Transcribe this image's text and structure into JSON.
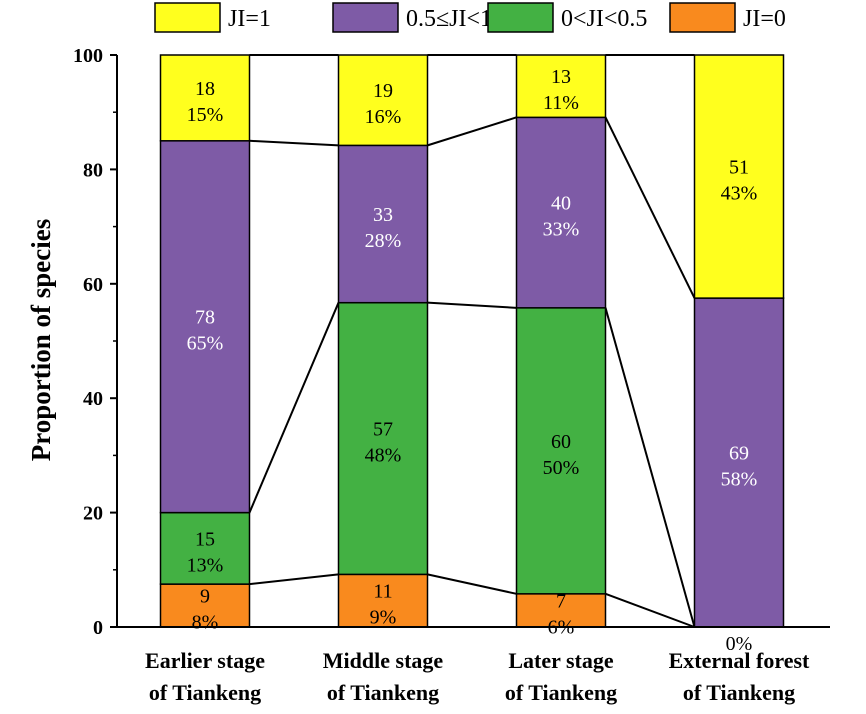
{
  "chart_data": {
    "type": "bar",
    "stacked": true,
    "categories": [
      [
        "Earlier stage",
        "of Tiankeng"
      ],
      [
        "Middle stage",
        "of Tiankeng"
      ],
      [
        "Later stage",
        "of Tiankeng"
      ],
      [
        "External forest",
        "of Tiankeng"
      ]
    ],
    "series": [
      {
        "name": "JI=0",
        "color": "#F98A1E",
        "text_color": "#000000",
        "values": [
          7.5,
          9.2,
          5.8,
          0
        ],
        "counts": [
          "9",
          "11",
          "7",
          "0"
        ],
        "percents": [
          "8%",
          "9%",
          "6%",
          "0%"
        ]
      },
      {
        "name": "0<JI<0.5",
        "color": "#43B143",
        "text_color": "#000000",
        "values": [
          12.5,
          47.5,
          50.0,
          0
        ],
        "counts": [
          "15",
          "57",
          "60",
          ""
        ],
        "percents": [
          "13%",
          "48%",
          "50%",
          ""
        ]
      },
      {
        "name": "0.5≤JI<1",
        "color": "#7E5BA6",
        "text_color": "#ffffff",
        "values": [
          65.0,
          27.5,
          33.3,
          57.5
        ],
        "counts": [
          "78",
          "33",
          "40",
          "69"
        ],
        "percents": [
          "65%",
          "28%",
          "33%",
          "58%"
        ]
      },
      {
        "name": "JI=1",
        "color": "#FFFF1E",
        "text_color": "#000000",
        "values": [
          15.0,
          15.8,
          10.9,
          42.5
        ],
        "counts": [
          "18",
          "19",
          "13",
          "51"
        ],
        "percents": [
          "15%",
          "16%",
          "11%",
          "43%"
        ]
      }
    ],
    "legend_order": [
      "JI=1",
      "0.5≤JI<1",
      "0<JI<0.5",
      "JI=0"
    ],
    "legend_position": "top",
    "ylabel": "Proportion of species",
    "xlabel": "",
    "ylim": [
      0,
      100
    ],
    "yticks": [
      "0",
      "20",
      "40",
      "60",
      "80",
      "100"
    ],
    "grid": false
  }
}
